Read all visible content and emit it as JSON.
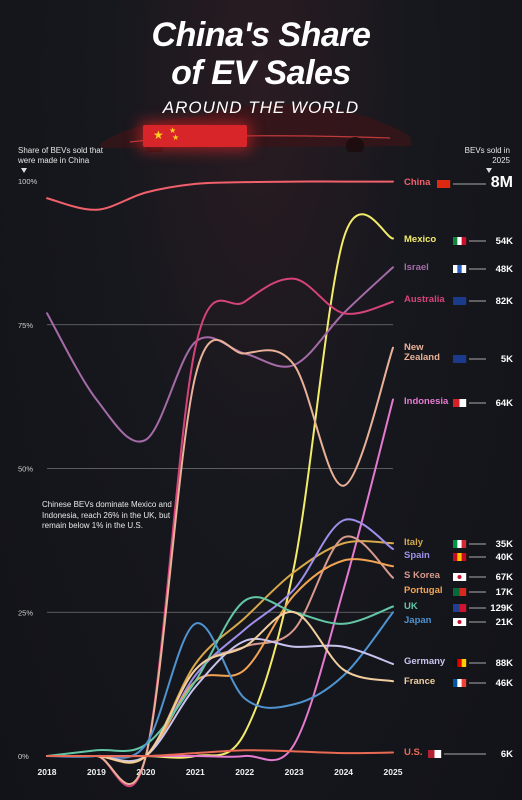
{
  "title_line1": "China's Share",
  "title_line2": "of EV Sales",
  "subtitle": "AROUND THE WORLD",
  "left_header": "Share of BEVs sold that were made in China",
  "right_header": "BEVs sold in 2025",
  "note": "Chinese BEVs dominate Mexico and Indonesia, reach 26% in the UK, but remain below 1% in the U.S.",
  "colors": {
    "background": "#14151b",
    "china_red": "#e03a3e",
    "gridline": "#8a8a8a"
  },
  "chart_data": {
    "type": "line",
    "x": [
      2018,
      2019,
      2020,
      2021,
      2022,
      2023,
      2024,
      2025
    ],
    "ylim": [
      0,
      100
    ],
    "y_ticks": [
      "0%",
      "25%",
      "50%",
      "75%",
      "100%"
    ],
    "series": [
      {
        "name": "China",
        "color": "#f2606c",
        "sold": "8M",
        "values": [
          97,
          95,
          98,
          99.5,
          99.8,
          99.9,
          99.9,
          99.9
        ]
      },
      {
        "name": "Mexico",
        "color": "#f3eb6a",
        "sold": "54K",
        "values": [
          0,
          0,
          0,
          0,
          4,
          33,
          90,
          90
        ]
      },
      {
        "name": "Israel",
        "color": "#a56ba8",
        "sold": "48K",
        "values": [
          77,
          62,
          55,
          72,
          70,
          68,
          77,
          85
        ]
      },
      {
        "name": "Australia",
        "color": "#d6437a",
        "sold": "82K",
        "values": [
          0,
          0,
          0,
          71,
          79,
          83,
          77,
          79
        ]
      },
      {
        "name": "New Zealand",
        "color": "#e9b298",
        "sold": "5K",
        "values": [
          0,
          0,
          0,
          66,
          70,
          68,
          47,
          71
        ]
      },
      {
        "name": "Indonesia",
        "color": "#e57ad0",
        "sold": "64K",
        "values": [
          0,
          0,
          0,
          0,
          0,
          2,
          29,
          62
        ]
      },
      {
        "name": "Italy",
        "color": "#d8a84a",
        "sold": "35K",
        "values": [
          0,
          0,
          0,
          16,
          24,
          32,
          37,
          37
        ]
      },
      {
        "name": "Spain",
        "color": "#9f8fe9",
        "sold": "40K",
        "values": [
          0,
          0,
          0,
          14,
          22,
          29,
          41,
          36
        ]
      },
      {
        "name": "S Korea",
        "color": "#d79a8c",
        "sold": "67K",
        "values": [
          0,
          0,
          0,
          15,
          19,
          22,
          38,
          31
        ]
      },
      {
        "name": "Portugal",
        "color": "#f2a454",
        "sold": "17K",
        "values": [
          0,
          0,
          0,
          13,
          15,
          28,
          34,
          33
        ]
      },
      {
        "name": "UK",
        "color": "#63c6a5",
        "sold": "129K",
        "values": [
          0,
          1,
          2,
          13,
          27,
          25,
          23,
          26
        ]
      },
      {
        "name": "Japan",
        "color": "#4f93cf",
        "sold": "21K",
        "values": [
          0,
          0,
          2,
          23,
          10,
          9,
          14,
          25
        ]
      },
      {
        "name": "Germany",
        "color": "#c9c3ef",
        "sold": "88K",
        "values": [
          0,
          0,
          0,
          12,
          20,
          19,
          19,
          16
        ]
      },
      {
        "name": "France",
        "color": "#f0ce9d",
        "sold": "46K",
        "values": [
          0,
          0,
          0,
          15,
          19,
          25,
          15,
          13
        ]
      },
      {
        "name": "U.S.",
        "color": "#e86a55",
        "sold": "6K",
        "values": [
          0,
          0,
          0,
          0.5,
          1,
          0.8,
          0.5,
          0.6
        ]
      }
    ]
  }
}
